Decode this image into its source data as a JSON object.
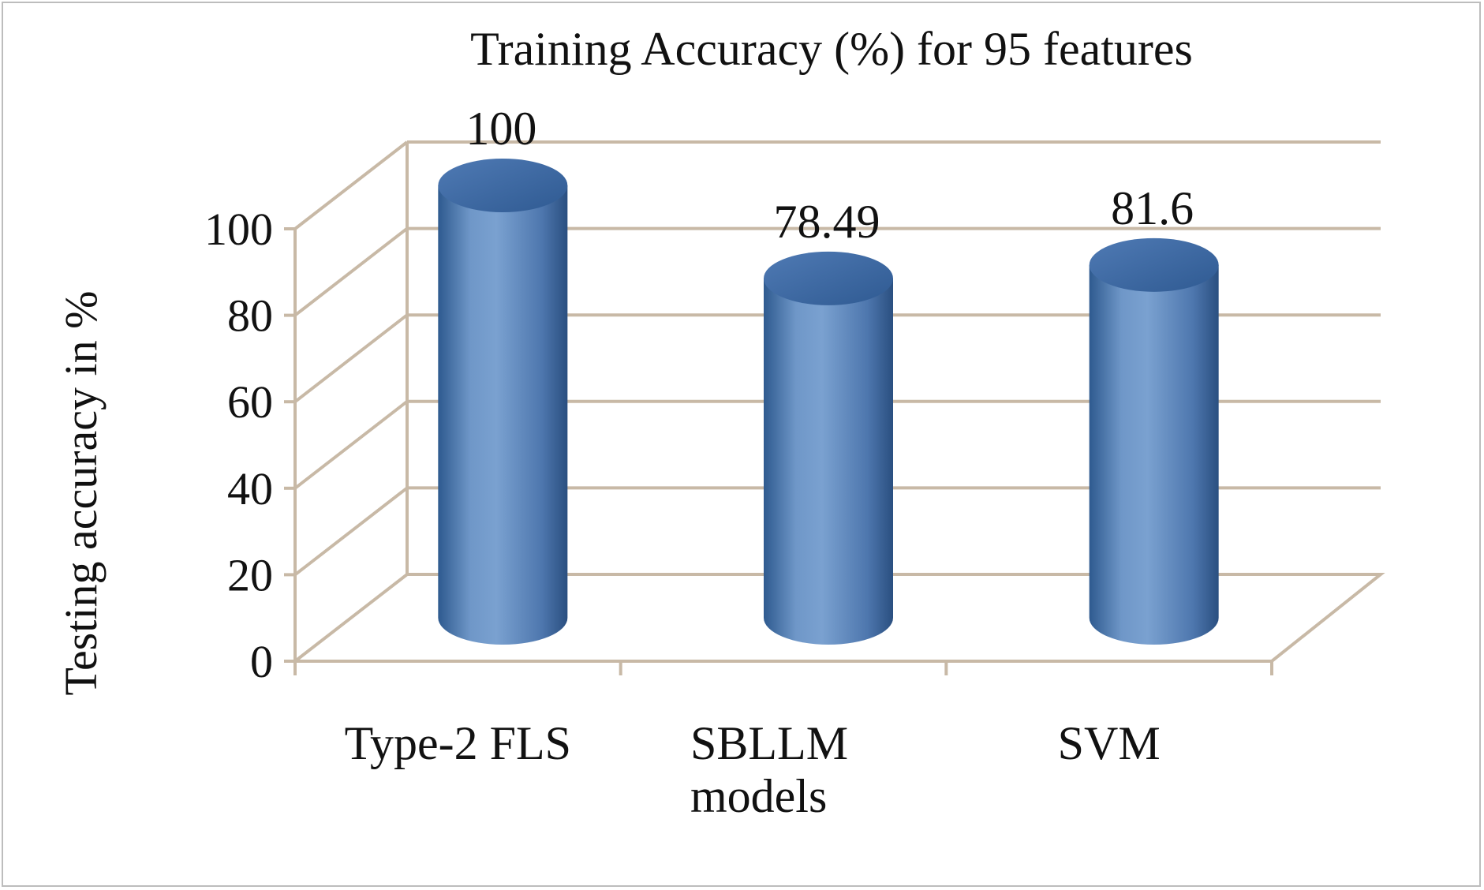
{
  "chart_data": {
    "type": "bar",
    "title": "Training Accuracy (%) for 95 features",
    "ylabel": "Testing accuracy in %",
    "xlabel": "",
    "categories": [
      [
        "Type-2 FLS"
      ],
      [
        "SBLLM",
        "models"
      ],
      [
        "SVM"
      ]
    ],
    "values": [
      100,
      78.49,
      81.6
    ],
    "data_labels": [
      "100",
      "78.49",
      "81.6"
    ],
    "ylim": [
      0,
      100
    ],
    "y_ticks": [
      0,
      20,
      40,
      60,
      80,
      100
    ],
    "grid": true,
    "style": "3d-cylinder",
    "bar_color": "#4f81bd"
  }
}
